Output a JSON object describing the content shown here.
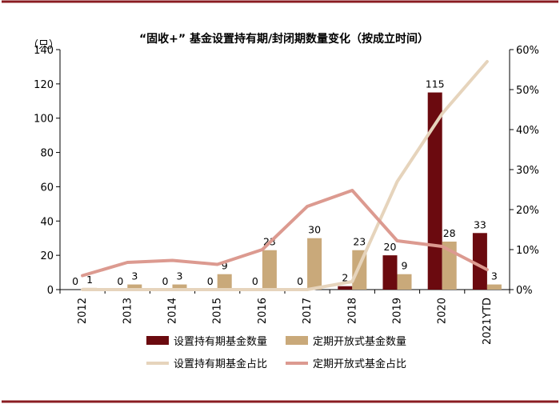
{
  "chart_data": {
    "type": "bar",
    "title": "“固收+” 基金设置持有期/封闭期数量变化（按成立时间）",
    "y_unit": "（只）",
    "categories": [
      "2012",
      "2013",
      "2014",
      "2015",
      "2016",
      "2017",
      "2018",
      "2019",
      "2020",
      "2021YTD"
    ],
    "ylim": [
      0,
      140
    ],
    "y_ticks": [
      "0",
      "20",
      "40",
      "60",
      "80",
      "100",
      "120",
      "140"
    ],
    "y2lim": [
      0,
      0.6
    ],
    "y2_ticks": [
      "0%",
      "10%",
      "20%",
      "30%",
      "40%",
      "50%",
      "60%"
    ],
    "grid": false,
    "legend_position": "bottom",
    "series": [
      {
        "name": "设置持有期基金数量",
        "type": "bar",
        "axis": "left",
        "color": "#6b0a0f",
        "values": [
          0,
          0,
          0,
          0,
          0,
          0,
          2,
          20,
          115,
          33
        ],
        "labels": [
          "0",
          "0",
          "0",
          "0",
          "0",
          "0",
          "2",
          "20",
          "115",
          "33"
        ]
      },
      {
        "name": "定期开放式基金数量",
        "type": "bar",
        "axis": "left",
        "color": "#c9a97a",
        "values": [
          1,
          3,
          3,
          9,
          23,
          30,
          23,
          9,
          28,
          3
        ],
        "labels": [
          "1",
          "3",
          "3",
          "9",
          "23",
          "30",
          "23",
          "9",
          "28",
          "3"
        ]
      },
      {
        "name": "设置持有期基金占比",
        "type": "line",
        "axis": "right",
        "color": "#e6d4bc",
        "values": [
          0,
          0,
          0,
          0,
          0,
          0,
          0.02,
          0.27,
          0.44,
          0.57
        ]
      },
      {
        "name": "定期开放式基金占比",
        "type": "line",
        "axis": "right",
        "color": "#dc9a90",
        "values": [
          0.035,
          0.068,
          0.073,
          0.063,
          0.1,
          0.208,
          0.248,
          0.122,
          0.108,
          0.05
        ]
      }
    ]
  }
}
